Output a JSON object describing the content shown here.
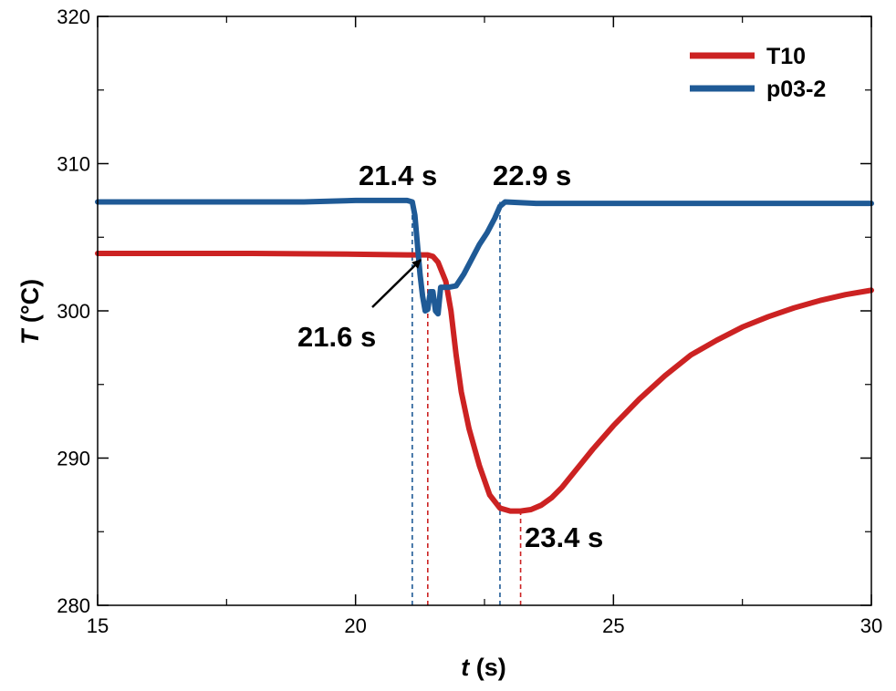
{
  "chart_data": {
    "type": "line",
    "xlabel_var": "t",
    "xlabel_unit": " (s)",
    "ylabel_var": "T",
    "ylabel_unit": " (°C)",
    "xlim": [
      15,
      30
    ],
    "ylim": [
      280,
      320
    ],
    "xticks": [
      15,
      20,
      25,
      30
    ],
    "yticks": [
      280,
      290,
      300,
      310,
      320
    ],
    "legend_position": "top-right",
    "series": [
      {
        "name": "T10",
        "color": "#cc2222",
        "x": [
          15,
          18,
          20,
          21.0,
          21.3,
          21.4,
          21.5,
          21.6,
          21.75,
          21.85,
          21.95,
          22.05,
          22.2,
          22.4,
          22.6,
          22.8,
          23.0,
          23.2,
          23.4,
          23.6,
          23.8,
          24.0,
          24.3,
          24.6,
          25.0,
          25.5,
          26.0,
          26.5,
          27.0,
          27.5,
          28.0,
          28.5,
          29.0,
          29.5,
          30.0
        ],
        "y": [
          303.9,
          303.9,
          303.85,
          303.8,
          303.8,
          303.8,
          303.7,
          303.3,
          302.0,
          300.0,
          297.0,
          294.5,
          292.0,
          289.5,
          287.5,
          286.6,
          286.4,
          286.4,
          286.5,
          286.8,
          287.3,
          288.0,
          289.3,
          290.6,
          292.2,
          294.0,
          295.6,
          297.0,
          298.0,
          298.9,
          299.6,
          300.2,
          300.7,
          301.1,
          301.4
        ]
      },
      {
        "name": "p03-2",
        "color": "#1f5a96",
        "x": [
          15,
          17,
          19,
          20,
          21.0,
          21.1,
          21.15,
          21.2,
          21.25,
          21.3,
          21.35,
          21.4,
          21.45,
          21.5,
          21.55,
          21.6,
          21.65,
          21.8,
          21.95,
          22.1,
          22.25,
          22.4,
          22.55,
          22.7,
          22.8,
          22.9,
          23.5,
          25,
          27,
          30
        ],
        "y": [
          307.4,
          307.4,
          307.4,
          307.5,
          307.5,
          307.4,
          306.5,
          304.5,
          302.5,
          301.0,
          300.0,
          300.1,
          301.3,
          301.3,
          300.0,
          299.8,
          301.6,
          301.6,
          301.7,
          302.5,
          303.5,
          304.5,
          305.3,
          306.3,
          307.1,
          307.4,
          307.3,
          307.3,
          307.3,
          307.3
        ]
      }
    ],
    "vlines": [
      {
        "x": 21.1,
        "color": "#1f5a96"
      },
      {
        "x": 21.4,
        "color": "#cc2222"
      },
      {
        "x": 22.8,
        "color": "#1f5a96"
      },
      {
        "x": 23.2,
        "color": "#cc2222"
      }
    ],
    "annotations": [
      {
        "text": "21.4 s"
      },
      {
        "text": "22.9 s"
      },
      {
        "text": "21.6 s"
      },
      {
        "text": "23.4 s"
      }
    ]
  }
}
